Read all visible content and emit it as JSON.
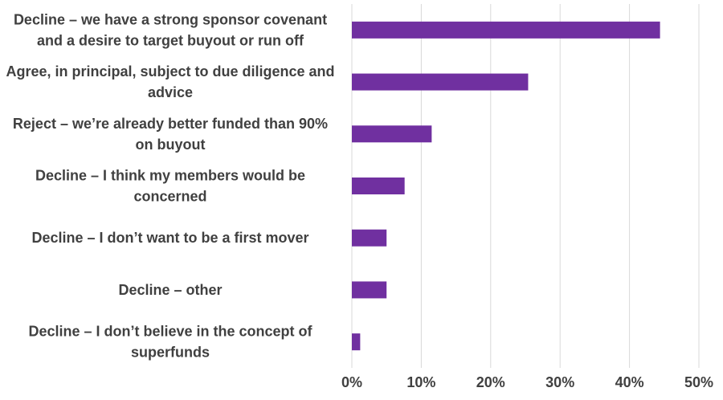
{
  "chart_data": {
    "type": "bar",
    "orientation": "horizontal",
    "title": "",
    "xlabel": "",
    "ylabel": "",
    "categories": [
      [
        "Decline – we have a strong sponsor covenant",
        "and a desire to target buyout or run off"
      ],
      [
        "Agree, in principal, subject to due diligence and",
        "advice"
      ],
      [
        "Reject – we’re already better funded than 90%",
        "on buyout"
      ],
      [
        "Decline –  I think my members would be",
        "concerned"
      ],
      [
        "Decline – I don’t want to be a first mover"
      ],
      [
        "Decline –  other"
      ],
      [
        "Decline – I don’t believe in the concept of",
        "superfunds"
      ]
    ],
    "values": [
      44.4,
      25.4,
      11.5,
      7.6,
      5.0,
      5.0,
      1.2
    ],
    "unit": "%",
    "xlim": [
      0,
      50
    ],
    "x_ticks": [
      0,
      10,
      20,
      30,
      40,
      50
    ],
    "x_tick_labels": [
      "0%",
      "10%",
      "20%",
      "30%",
      "40%",
      "50%"
    ],
    "grid": "vertical",
    "legend": "none",
    "bar_color": "#7030a0"
  }
}
